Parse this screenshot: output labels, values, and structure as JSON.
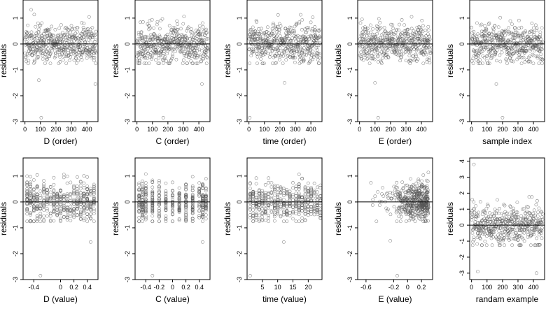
{
  "chart_data": [
    {
      "type": "scatter",
      "xlabel": "D (order)",
      "ylabel": "residuals",
      "xlim": [
        -12,
        472
      ],
      "ylim": [
        -3,
        1.7
      ],
      "xticks": [
        0,
        100,
        200,
        300,
        400
      ],
      "xtick_labels": [
        "0",
        "100",
        "200",
        "300",
        "400"
      ],
      "yticks": [
        -3,
        -2,
        -1,
        0,
        1
      ],
      "ytick_labels": [
        "-3",
        "-2",
        "-1",
        "0",
        "1"
      ],
      "hline": 0,
      "x_mode": "order",
      "n": 460,
      "seed": 11,
      "spread": 0.6,
      "outliers": [
        [
          105,
          -2.85
        ],
        [
          90,
          -1.4
        ],
        [
          455,
          -1.55
        ]
      ]
    },
    {
      "type": "scatter",
      "xlabel": "C (order)",
      "ylabel": "residuals",
      "xlim": [
        -12,
        472
      ],
      "ylim": [
        -3,
        1.7
      ],
      "xticks": [
        0,
        100,
        200,
        300,
        400
      ],
      "xtick_labels": [
        "0",
        "100",
        "200",
        "300",
        "400"
      ],
      "yticks": [
        -3,
        -2,
        -1,
        0,
        1
      ],
      "ytick_labels": [
        "-3",
        "-2",
        "-1",
        "0",
        "1"
      ],
      "hline": 0,
      "x_mode": "order",
      "n": 460,
      "seed": 23,
      "spread": 0.6,
      "outliers": [
        [
          170,
          -2.85
        ],
        [
          420,
          -1.55
        ]
      ]
    },
    {
      "type": "scatter",
      "xlabel": "time (order)",
      "ylabel": "residuals",
      "xlim": [
        -12,
        472
      ],
      "ylim": [
        -3,
        1.7
      ],
      "xticks": [
        0,
        100,
        200,
        300,
        400
      ],
      "xtick_labels": [
        "0",
        "100",
        "200",
        "300",
        "400"
      ],
      "yticks": [
        -3,
        -2,
        -1,
        0,
        1
      ],
      "ytick_labels": [
        "-3",
        "-2",
        "-1",
        "0",
        "1"
      ],
      "hline": 0,
      "x_mode": "order",
      "n": 460,
      "seed": 37,
      "spread": 0.6,
      "outliers": [
        [
          5,
          -2.85
        ],
        [
          230,
          -1.5
        ]
      ]
    },
    {
      "type": "scatter",
      "xlabel": "E (order)",
      "ylabel": "residuals",
      "xlim": [
        -12,
        472
      ],
      "ylim": [
        -3,
        1.7
      ],
      "xticks": [
        0,
        100,
        200,
        300,
        400
      ],
      "xtick_labels": [
        "0",
        "100",
        "200",
        "300",
        "400"
      ],
      "yticks": [
        -3,
        -2,
        -1,
        0,
        1
      ],
      "ytick_labels": [
        "-3",
        "-2",
        "-1",
        "0",
        "1"
      ],
      "hline": 0,
      "x_mode": "order",
      "n": 460,
      "seed": 41,
      "spread": 0.6,
      "outliers": [
        [
          120,
          -2.85
        ],
        [
          100,
          -1.5
        ]
      ]
    },
    {
      "type": "scatter",
      "xlabel": "sample index",
      "ylabel": "residuals",
      "xlim": [
        -12,
        472
      ],
      "ylim": [
        -3,
        1.7
      ],
      "xticks": [
        0,
        100,
        200,
        300,
        400
      ],
      "xtick_labels": [
        "0",
        "100",
        "200",
        "300",
        "400"
      ],
      "yticks": [
        -3,
        -2,
        -1,
        0,
        1
      ],
      "ytick_labels": [
        "-3",
        "-2",
        "-1",
        "0",
        "1"
      ],
      "hline": 0,
      "x_mode": "order",
      "n": 460,
      "seed": 53,
      "spread": 0.6,
      "outliers": [
        [
          200,
          -2.85
        ],
        [
          160,
          -1.55
        ]
      ]
    },
    {
      "type": "scatter",
      "xlabel": "D (value)",
      "ylabel": "residuals",
      "xlim": [
        -0.56,
        0.56
      ],
      "ylim": [
        -3,
        1.7
      ],
      "xticks": [
        -0.4,
        0,
        0.2,
        0.4
      ],
      "xtick_labels": [
        "-0.4",
        "0",
        "0.2",
        "0.4"
      ],
      "yticks": [
        -3,
        -2,
        -1,
        0,
        1
      ],
      "ytick_labels": [
        "-3",
        "-2",
        "-1",
        "0",
        "1"
      ],
      "hline": 0,
      "x_mode": "columns",
      "x_values": [
        -0.5,
        -0.45,
        -0.4,
        -0.35,
        -0.3,
        -0.25,
        -0.2,
        -0.15,
        -0.1,
        -0.05,
        0,
        0.05,
        0.1,
        0.15,
        0.2,
        0.25,
        0.3,
        0.35,
        0.4,
        0.45,
        0.5
      ],
      "n": 460,
      "seed": 67,
      "spread": 0.6,
      "outliers": [
        [
          -0.3,
          -2.85
        ],
        [
          0.45,
          -1.55
        ]
      ]
    },
    {
      "type": "scatter",
      "xlabel": "C (value)",
      "ylabel": "residuals",
      "xlim": [
        -0.56,
        0.56
      ],
      "ylim": [
        -3,
        1.7
      ],
      "xticks": [
        -0.4,
        -0.2,
        0,
        0.2,
        0.4
      ],
      "xtick_labels": [
        "-0.4",
        "-0.2",
        "0",
        "0.2",
        "0.4"
      ],
      "yticks": [
        -3,
        -2,
        -1,
        0,
        1
      ],
      "ytick_labels": [
        "-3",
        "-2",
        "-1",
        "0",
        "1"
      ],
      "hline": 0,
      "x_mode": "columns",
      "x_values": [
        -0.5,
        -0.45,
        -0.4,
        -0.3,
        -0.2,
        -0.1,
        0,
        0.1,
        0.2,
        0.3,
        0.4,
        0.45,
        0.5
      ],
      "n": 460,
      "seed": 71,
      "spread": 0.6,
      "outliers": [
        [
          -0.3,
          -2.85
        ],
        [
          0.45,
          -1.55
        ]
      ]
    },
    {
      "type": "scatter",
      "xlabel": "time (value)",
      "ylabel": "residuals",
      "xlim": [
        0,
        24.5
      ],
      "ylim": [
        -3,
        1.7
      ],
      "xticks": [
        5,
        10,
        15,
        20
      ],
      "xtick_labels": [
        "5",
        "10",
        "15",
        "20"
      ],
      "yticks": [
        -3,
        -2,
        -1,
        0,
        1
      ],
      "ytick_labels": [
        "-3",
        "-2",
        "-1",
        "0",
        "1"
      ],
      "hline": 0,
      "x_mode": "columns",
      "x_values": [
        1,
        2,
        3,
        4,
        5,
        6,
        7,
        8,
        9,
        10,
        11,
        12,
        13,
        14,
        15,
        16,
        17,
        18,
        19,
        20,
        21,
        22,
        23,
        24
      ],
      "n": 460,
      "seed": 83,
      "spread": 0.6,
      "outliers": [
        [
          1,
          -2.85
        ],
        [
          12,
          -1.55
        ]
      ]
    },
    {
      "type": "scatter",
      "xlabel": "E (value)",
      "ylabel": "residuals",
      "xlim": [
        -0.72,
        0.36
      ],
      "ylim": [
        -3,
        1.7
      ],
      "xticks": [
        -0.6,
        -0.2,
        0,
        0.2
      ],
      "xtick_labels": [
        "-0.6",
        "-0.2",
        "0",
        "0.2"
      ],
      "yticks": [
        -3,
        -2,
        -1,
        0,
        1
      ],
      "ytick_labels": [
        "-3",
        "-2",
        "-1",
        "0",
        "1"
      ],
      "hline": 0,
      "x_mode": "skewed",
      "n": 460,
      "seed": 97,
      "spread": 0.6,
      "outliers": [
        [
          -0.15,
          -2.85
        ],
        [
          -0.25,
          -1.5
        ]
      ]
    },
    {
      "type": "scatter",
      "xlabel": "randam example",
      "ylabel": "residuals",
      "xlim": [
        -12,
        472
      ],
      "ylim": [
        -3.4,
        4.2
      ],
      "xticks": [
        0,
        100,
        200,
        300,
        400
      ],
      "xtick_labels": [
        "0",
        "100",
        "200",
        "300",
        "400"
      ],
      "yticks": [
        -3,
        -2,
        -1,
        0,
        1,
        2,
        3,
        4
      ],
      "ytick_labels": [
        "-3",
        "-2",
        "-1",
        "0",
        "1",
        "2",
        "3",
        "4"
      ],
      "hline": 0,
      "x_mode": "order",
      "n": 460,
      "seed": 101,
      "spread": 1.0,
      "outliers": [
        [
          15,
          3.8
        ],
        [
          40,
          -2.9
        ],
        [
          420,
          -3.0
        ]
      ]
    }
  ]
}
